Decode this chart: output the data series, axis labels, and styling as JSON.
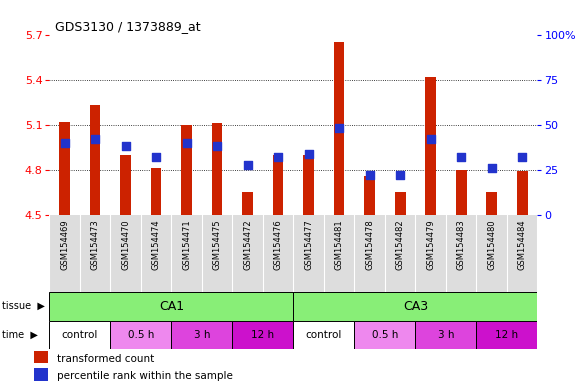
{
  "title": "GDS3130 / 1373889_at",
  "samples": [
    "GSM154469",
    "GSM154473",
    "GSM154470",
    "GSM154474",
    "GSM154471",
    "GSM154475",
    "GSM154472",
    "GSM154476",
    "GSM154477",
    "GSM154481",
    "GSM154478",
    "GSM154482",
    "GSM154479",
    "GSM154483",
    "GSM154480",
    "GSM154484"
  ],
  "bar_values": [
    5.12,
    5.23,
    4.9,
    4.81,
    5.1,
    5.11,
    4.65,
    4.9,
    4.9,
    5.65,
    4.76,
    4.65,
    5.42,
    4.8,
    4.65,
    4.79
  ],
  "percentile_values": [
    40,
    42,
    38,
    32,
    40,
    38,
    28,
    32,
    34,
    48,
    22,
    22,
    42,
    32,
    26,
    32
  ],
  "bar_color": "#cc2200",
  "blue_color": "#2233cc",
  "ymin": 4.5,
  "ymax": 5.7,
  "yticks": [
    4.5,
    4.8,
    5.1,
    5.4,
    5.7
  ],
  "right_yticks": [
    0,
    25,
    50,
    75,
    100
  ],
  "right_yticklabels": [
    "0",
    "25",
    "50",
    "75",
    "100%"
  ],
  "tissue_labels": [
    {
      "label": "CA1",
      "start": 0,
      "end": 8
    },
    {
      "label": "CA3",
      "start": 8,
      "end": 16
    }
  ],
  "tissue_color": "#88ee77",
  "time_groups": [
    {
      "label": "control",
      "start": 0,
      "end": 2,
      "color": "#ffffff"
    },
    {
      "label": "0.5 h",
      "start": 2,
      "end": 4,
      "color": "#ee88ee"
    },
    {
      "label": "3 h",
      "start": 4,
      "end": 6,
      "color": "#dd44dd"
    },
    {
      "label": "12 h",
      "start": 6,
      "end": 8,
      "color": "#cc11cc"
    },
    {
      "label": "control",
      "start": 8,
      "end": 10,
      "color": "#ffffff"
    },
    {
      "label": "0.5 h",
      "start": 10,
      "end": 12,
      "color": "#ee88ee"
    },
    {
      "label": "3 h",
      "start": 12,
      "end": 14,
      "color": "#dd44dd"
    },
    {
      "label": "12 h",
      "start": 14,
      "end": 16,
      "color": "#cc11cc"
    }
  ],
  "legend_items": [
    {
      "color": "#cc2200",
      "label": "transformed count"
    },
    {
      "color": "#2233cc",
      "label": "percentile rank within the sample"
    }
  ],
  "bg_color": "#ffffff",
  "bar_width": 0.35,
  "blue_size": 28,
  "chart_bg": "#ffffff",
  "xtick_bg": "#dddddd"
}
